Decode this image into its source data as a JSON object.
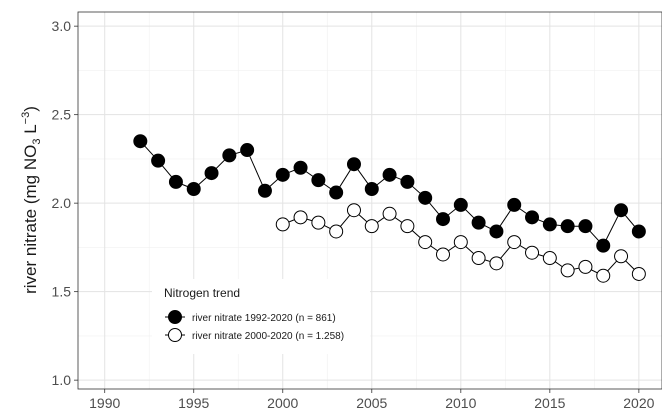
{
  "chart_data": {
    "type": "line",
    "ylabel": "river nitrate (mg NO",
    "ylabel_sub": "3",
    "ylabel_unit": " L",
    "ylabel_sup": "−3",
    "ylabel_close": ")",
    "xlim": [
      1988.5,
      2021.3
    ],
    "ylim": [
      0.95,
      3.08
    ],
    "x_ticks": [
      1990,
      1995,
      2000,
      2005,
      2010,
      2015,
      2020
    ],
    "y_ticks": [
      1.0,
      1.5,
      2.0,
      2.5,
      3.0
    ],
    "x_tick_labels": [
      "1990",
      "1995",
      "2000",
      "2005",
      "2010",
      "2015",
      "2020"
    ],
    "y_tick_labels": [
      "1.0",
      "1.5",
      "2.0",
      "2.5",
      "3.0"
    ],
    "grid": true,
    "legend": {
      "title": "Nitrogen trend",
      "placement": "bottom-left"
    },
    "series": [
      {
        "name": "river nitrate 1992-2020 (n = 861)",
        "fill": "#000000",
        "x": [
          1992,
          1993,
          1994,
          1995,
          1996,
          1997,
          1998,
          1999,
          2000,
          2001,
          2002,
          2003,
          2004,
          2005,
          2006,
          2007,
          2008,
          2009,
          2010,
          2011,
          2012,
          2013,
          2014,
          2015,
          2016,
          2017,
          2018,
          2019,
          2020
        ],
        "y": [
          2.35,
          2.24,
          2.12,
          2.08,
          2.17,
          2.27,
          2.3,
          2.07,
          2.16,
          2.2,
          2.13,
          2.06,
          2.22,
          2.08,
          2.16,
          2.12,
          2.03,
          1.91,
          1.99,
          1.89,
          1.84,
          1.99,
          1.92,
          1.88,
          1.87,
          1.87,
          1.76,
          1.96,
          1.84
        ]
      },
      {
        "name": "river nitrate 2000-2020 (n = 1.258)",
        "fill": "#ffffff",
        "x": [
          2000,
          2001,
          2002,
          2003,
          2004,
          2005,
          2006,
          2007,
          2008,
          2009,
          2010,
          2011,
          2012,
          2013,
          2014,
          2015,
          2016,
          2017,
          2018,
          2019,
          2020
        ],
        "y": [
          1.88,
          1.92,
          1.89,
          1.84,
          1.96,
          1.87,
          1.94,
          1.87,
          1.78,
          1.71,
          1.78,
          1.69,
          1.66,
          1.78,
          1.72,
          1.69,
          1.62,
          1.64,
          1.59,
          1.7,
          1.6
        ]
      }
    ]
  }
}
